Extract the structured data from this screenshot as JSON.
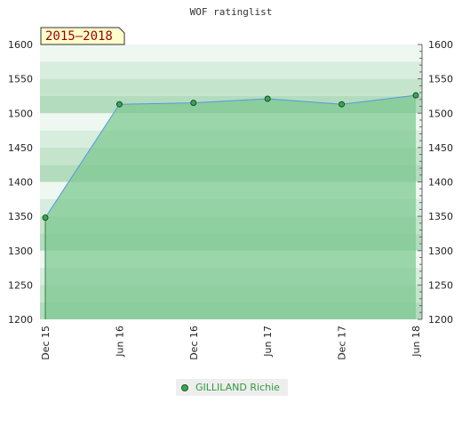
{
  "chart_data": {
    "type": "area",
    "title": "WOF ratinglist",
    "period_badge": "2015–2018",
    "categories": [
      "Dec 15",
      "Jun 16",
      "Dec 16",
      "Jun 17",
      "Dec 17",
      "Jun 18"
    ],
    "series": [
      {
        "name": "GILLILAND Richie",
        "values": [
          1348,
          1513,
          1515,
          1521,
          1513,
          1526
        ]
      }
    ],
    "ylim": [
      1200,
      1600
    ],
    "yticks": [
      1200,
      1250,
      1300,
      1350,
      1400,
      1450,
      1500,
      1550,
      1600
    ],
    "grid": true,
    "y_axis_sides": "both",
    "legend_position": "bottom",
    "colors": {
      "area_fill": "#7cc78f",
      "series_line": "#5599dd",
      "marker_fill": "#33aa55",
      "badge_text": "#990000",
      "legend_text": "#2e9a3a"
    }
  }
}
